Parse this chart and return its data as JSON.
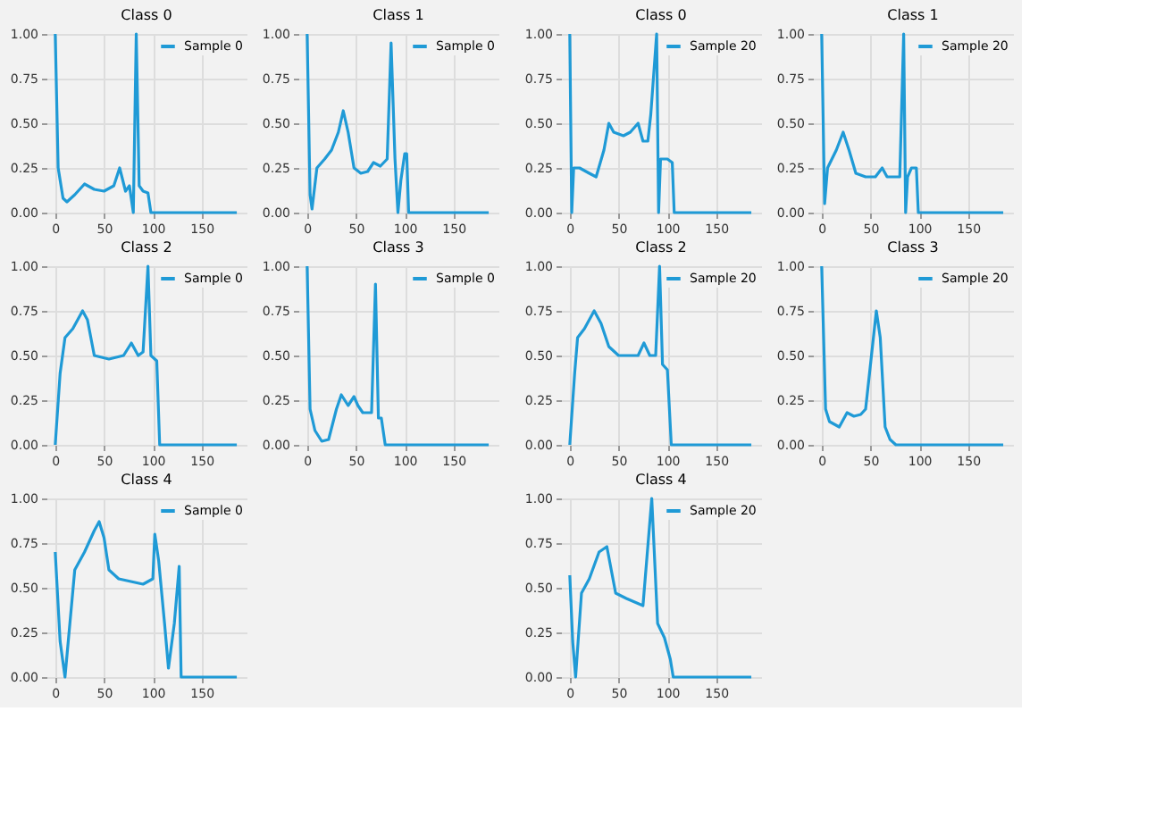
{
  "chart_data": [
    {
      "type": "line",
      "title": "Class 0",
      "legend": "top right",
      "grid": true,
      "xlim": [
        -9,
        196
      ],
      "xticks": [
        0,
        50,
        100,
        150
      ],
      "ylim": [
        0,
        1
      ],
      "yticks": [
        {
          "value": 0,
          "label": "0.00"
        },
        {
          "value": 0.25,
          "label": "0.25"
        },
        {
          "value": 0.5,
          "label": "0.50"
        },
        {
          "value": 0.75,
          "label": "0.75"
        },
        {
          "value": 1,
          "label": "1.00"
        }
      ],
      "series": [
        {
          "name": "Sample 0",
          "color": "#1f9ad6",
          "x": [
            0,
            3,
            8,
            12,
            20,
            30,
            40,
            50,
            60,
            66,
            72,
            76,
            80,
            83,
            86,
            90,
            95,
            98,
            186
          ],
          "values": [
            1.0,
            0.25,
            0.08,
            0.06,
            0.1,
            0.16,
            0.13,
            0.12,
            0.15,
            0.25,
            0.12,
            0.15,
            0.0,
            1.0,
            0.15,
            0.12,
            0.11,
            0.0,
            0.0
          ]
        }
      ]
    },
    {
      "type": "line",
      "title": "Class 1",
      "legend": "top right",
      "grid": true,
      "xlim": [
        -9,
        196
      ],
      "xticks": [
        0,
        50,
        100,
        150
      ],
      "ylim": [
        0,
        1
      ],
      "yticks": [
        {
          "value": 0,
          "label": "0.00"
        },
        {
          "value": 0.25,
          "label": "0.25"
        },
        {
          "value": 0.5,
          "label": "0.50"
        },
        {
          "value": 0.75,
          "label": "0.75"
        },
        {
          "value": 1,
          "label": "1.00"
        }
      ],
      "series": [
        {
          "name": "Sample 0",
          "color": "#1f9ad6",
          "x": [
            0,
            3,
            5,
            10,
            18,
            25,
            32,
            37,
            42,
            48,
            55,
            62,
            68,
            75,
            82,
            86,
            90,
            93,
            96,
            100,
            102,
            104,
            186
          ],
          "values": [
            1.0,
            0.1,
            0.02,
            0.25,
            0.3,
            0.35,
            0.45,
            0.57,
            0.45,
            0.25,
            0.22,
            0.23,
            0.28,
            0.26,
            0.3,
            0.95,
            0.3,
            0.0,
            0.18,
            0.33,
            0.33,
            0.0,
            0.0
          ]
        }
      ]
    },
    {
      "type": "line",
      "title": "Class 2",
      "legend": "top right",
      "grid": true,
      "xlim": [
        -9,
        196
      ],
      "xticks": [
        0,
        50,
        100,
        150
      ],
      "ylim": [
        0,
        1
      ],
      "yticks": [
        {
          "value": 0,
          "label": "0.00"
        },
        {
          "value": 0.25,
          "label": "0.25"
        },
        {
          "value": 0.5,
          "label": "0.50"
        },
        {
          "value": 0.75,
          "label": "0.75"
        },
        {
          "value": 1,
          "label": "1.00"
        }
      ],
      "series": [
        {
          "name": "Sample 0",
          "color": "#1f9ad6",
          "x": [
            0,
            5,
            10,
            18,
            28,
            33,
            40,
            55,
            70,
            78,
            85,
            90,
            95,
            98,
            104,
            107,
            186
          ],
          "values": [
            0.0,
            0.4,
            0.6,
            0.65,
            0.75,
            0.7,
            0.5,
            0.48,
            0.5,
            0.57,
            0.5,
            0.52,
            1.0,
            0.5,
            0.47,
            0.0,
            0.0
          ]
        }
      ]
    },
    {
      "type": "line",
      "title": "Class 3",
      "legend": "top right",
      "grid": true,
      "xlim": [
        -9,
        196
      ],
      "xticks": [
        0,
        50,
        100,
        150
      ],
      "ylim": [
        0,
        1
      ],
      "yticks": [
        {
          "value": 0,
          "label": "0.00"
        },
        {
          "value": 0.25,
          "label": "0.25"
        },
        {
          "value": 0.5,
          "label": "0.50"
        },
        {
          "value": 0.75,
          "label": "0.75"
        },
        {
          "value": 1,
          "label": "1.00"
        }
      ],
      "series": [
        {
          "name": "Sample 0",
          "color": "#1f9ad6",
          "x": [
            0,
            3,
            8,
            15,
            22,
            30,
            35,
            42,
            48,
            52,
            57,
            66,
            70,
            73,
            76,
            80,
            186
          ],
          "values": [
            1.0,
            0.2,
            0.08,
            0.02,
            0.03,
            0.2,
            0.28,
            0.22,
            0.27,
            0.22,
            0.18,
            0.18,
            0.9,
            0.15,
            0.15,
            0.0,
            0.0
          ]
        }
      ]
    },
    {
      "type": "line",
      "title": "Class 4",
      "legend": "top right",
      "grid": true,
      "xlim": [
        -9,
        196
      ],
      "xticks": [
        0,
        50,
        100,
        150
      ],
      "ylim": [
        0,
        1
      ],
      "yticks": [
        {
          "value": 0,
          "label": "0.00"
        },
        {
          "value": 0.25,
          "label": "0.25"
        },
        {
          "value": 0.5,
          "label": "0.50"
        },
        {
          "value": 0.75,
          "label": "0.75"
        },
        {
          "value": 1,
          "label": "1.00"
        }
      ],
      "series": [
        {
          "name": "Sample 0",
          "color": "#1f9ad6",
          "x": [
            0,
            5,
            10,
            15,
            20,
            30,
            40,
            45,
            50,
            55,
            65,
            90,
            100,
            102,
            106,
            112,
            116,
            122,
            127,
            129,
            186
          ],
          "values": [
            0.7,
            0.2,
            0.0,
            0.3,
            0.6,
            0.7,
            0.82,
            0.87,
            0.78,
            0.6,
            0.55,
            0.52,
            0.55,
            0.8,
            0.65,
            0.3,
            0.05,
            0.3,
            0.62,
            0.0,
            0.0
          ]
        }
      ]
    },
    {
      "type": "line",
      "title": "Class 0",
      "legend": "top right",
      "grid": true,
      "xlim": [
        -9,
        196
      ],
      "xticks": [
        0,
        50,
        100,
        150
      ],
      "ylim": [
        0,
        1
      ],
      "yticks": [
        {
          "value": 0,
          "label": "0.00"
        },
        {
          "value": 0.25,
          "label": "0.25"
        },
        {
          "value": 0.5,
          "label": "0.50"
        },
        {
          "value": 0.75,
          "label": "0.75"
        },
        {
          "value": 1,
          "label": "1.00"
        }
      ],
      "series": [
        {
          "name": "Sample 20",
          "color": "#1f9ad6",
          "x": [
            0,
            2,
            4,
            10,
            20,
            27,
            35,
            40,
            45,
            55,
            62,
            70,
            75,
            80,
            83,
            89,
            91,
            93,
            100,
            105,
            107,
            186
          ],
          "values": [
            1.0,
            0.0,
            0.25,
            0.25,
            0.22,
            0.2,
            0.35,
            0.5,
            0.45,
            0.43,
            0.45,
            0.5,
            0.4,
            0.4,
            0.55,
            1.0,
            0.0,
            0.3,
            0.3,
            0.28,
            0.0,
            0.0
          ]
        }
      ]
    },
    {
      "type": "line",
      "title": "Class 1",
      "legend": "top right",
      "grid": true,
      "xlim": [
        -9,
        196
      ],
      "xticks": [
        0,
        50,
        100,
        150
      ],
      "ylim": [
        0,
        1
      ],
      "yticks": [
        {
          "value": 0,
          "label": "0.00"
        },
        {
          "value": 0.25,
          "label": "0.25"
        },
        {
          "value": 0.5,
          "label": "0.50"
        },
        {
          "value": 0.75,
          "label": "0.75"
        },
        {
          "value": 1,
          "label": "1.00"
        }
      ],
      "series": [
        {
          "name": "Sample 20",
          "color": "#1f9ad6",
          "x": [
            0,
            3,
            6,
            15,
            22,
            28,
            35,
            45,
            55,
            62,
            67,
            75,
            80,
            84,
            86,
            88,
            92,
            97,
            99,
            186
          ],
          "values": [
            1.0,
            0.05,
            0.25,
            0.35,
            0.45,
            0.35,
            0.22,
            0.2,
            0.2,
            0.25,
            0.2,
            0.2,
            0.2,
            1.0,
            0.0,
            0.2,
            0.25,
            0.25,
            0.0,
            0.0
          ]
        }
      ]
    },
    {
      "type": "line",
      "title": "Class 2",
      "legend": "top right",
      "grid": true,
      "xlim": [
        -9,
        196
      ],
      "xticks": [
        0,
        50,
        100,
        150
      ],
      "ylim": [
        0,
        1
      ],
      "yticks": [
        {
          "value": 0,
          "label": "0.00"
        },
        {
          "value": 0.25,
          "label": "0.25"
        },
        {
          "value": 0.5,
          "label": "0.50"
        },
        {
          "value": 0.75,
          "label": "0.75"
        },
        {
          "value": 1,
          "label": "1.00"
        }
      ],
      "series": [
        {
          "name": "Sample 20",
          "color": "#1f9ad6",
          "x": [
            0,
            5,
            8,
            15,
            25,
            32,
            40,
            50,
            70,
            76,
            82,
            88,
            92,
            95,
            100,
            104,
            186
          ],
          "values": [
            0.0,
            0.4,
            0.6,
            0.65,
            0.75,
            0.68,
            0.55,
            0.5,
            0.5,
            0.57,
            0.5,
            0.5,
            1.0,
            0.45,
            0.42,
            0.0,
            0.0
          ]
        }
      ]
    },
    {
      "type": "line",
      "title": "Class 3",
      "legend": "top right",
      "grid": true,
      "xlim": [
        -9,
        196
      ],
      "xticks": [
        0,
        50,
        100,
        150
      ],
      "ylim": [
        0,
        1
      ],
      "yticks": [
        {
          "value": 0,
          "label": "0.00"
        },
        {
          "value": 0.25,
          "label": "0.25"
        },
        {
          "value": 0.5,
          "label": "0.50"
        },
        {
          "value": 0.75,
          "label": "0.75"
        },
        {
          "value": 1,
          "label": "1.00"
        }
      ],
      "series": [
        {
          "name": "Sample 20",
          "color": "#1f9ad6",
          "x": [
            0,
            4,
            8,
            18,
            26,
            33,
            40,
            45,
            52,
            56,
            60,
            65,
            70,
            76,
            186
          ],
          "values": [
            1.0,
            0.2,
            0.13,
            0.1,
            0.18,
            0.16,
            0.17,
            0.2,
            0.55,
            0.75,
            0.6,
            0.1,
            0.03,
            0.0,
            0.0
          ]
        }
      ]
    },
    {
      "type": "line",
      "title": "Class 4",
      "legend": "top right",
      "grid": true,
      "xlim": [
        -9,
        196
      ],
      "xticks": [
        0,
        50,
        100,
        150
      ],
      "ylim": [
        0,
        1
      ],
      "yticks": [
        {
          "value": 0,
          "label": "0.00"
        },
        {
          "value": 0.25,
          "label": "0.25"
        },
        {
          "value": 0.5,
          "label": "0.50"
        },
        {
          "value": 0.75,
          "label": "0.75"
        },
        {
          "value": 1,
          "label": "1.00"
        }
      ],
      "series": [
        {
          "name": "Sample 20",
          "color": "#1f9ad6",
          "x": [
            0,
            3,
            6,
            12,
            20,
            30,
            38,
            47,
            58,
            75,
            84,
            90,
            97,
            103,
            106,
            186
          ],
          "values": [
            0.57,
            0.2,
            0.0,
            0.47,
            0.55,
            0.7,
            0.73,
            0.47,
            0.44,
            0.4,
            1.0,
            0.3,
            0.22,
            0.1,
            0.0,
            0.0
          ]
        }
      ]
    }
  ]
}
